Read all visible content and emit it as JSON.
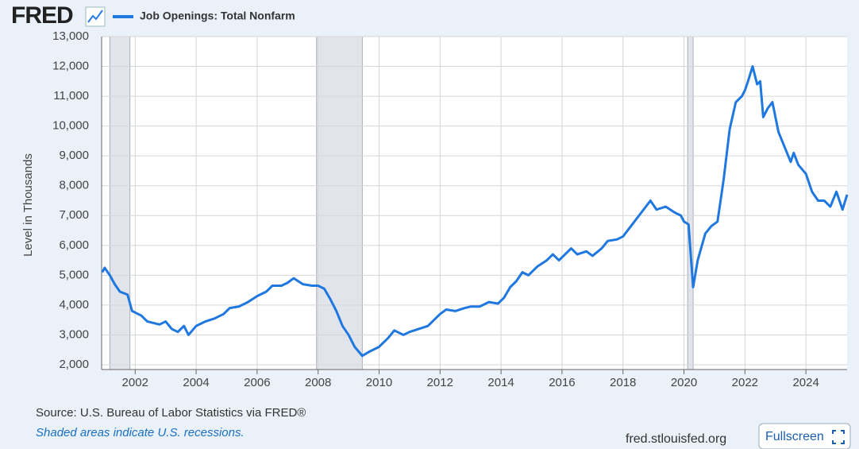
{
  "chart_data": {
    "type": "line",
    "logo": "FRED",
    "ylabel": "Level in Thousands",
    "source": "Source: U.S. Bureau of Labor Statistics via FRED®",
    "note": "Shaded areas indicate U.S. recessions.",
    "site": "fred.stlouisfed.org",
    "button": "Fullscreen",
    "grid": true,
    "xlim": [
      2000.9,
      2025.35
    ],
    "ylim": [
      1840,
      13000
    ],
    "xticks": [
      2002,
      2004,
      2006,
      2008,
      2010,
      2012,
      2014,
      2016,
      2018,
      2020,
      2022,
      2024
    ],
    "yticks": [
      {
        "value": 2000,
        "label": "2,000"
      },
      {
        "value": 3000,
        "label": "3,000"
      },
      {
        "value": 4000,
        "label": "4,000"
      },
      {
        "value": 5000,
        "label": "5,000"
      },
      {
        "value": 6000,
        "label": "6,000"
      },
      {
        "value": 7000,
        "label": "7,000"
      },
      {
        "value": 8000,
        "label": "8,000"
      },
      {
        "value": 9000,
        "label": "9,000"
      },
      {
        "value": 10000,
        "label": "10,000"
      },
      {
        "value": 11000,
        "label": "11,000"
      },
      {
        "value": 12000,
        "label": "12,000"
      },
      {
        "value": 13000,
        "label": "13,000"
      }
    ],
    "recessions": [
      [
        2001.17,
        2001.83
      ],
      [
        2007.95,
        2009.45
      ],
      [
        2020.12,
        2020.3
      ]
    ],
    "x": [
      2000.92,
      2001.0,
      2001.17,
      2001.33,
      2001.5,
      2001.75,
      2001.9,
      2002.0,
      2002.2,
      2002.4,
      2002.6,
      2002.8,
      2003.0,
      2003.2,
      2003.4,
      2003.6,
      2003.75,
      2004.0,
      2004.3,
      2004.6,
      2004.9,
      2005.1,
      2005.4,
      2005.7,
      2006.0,
      2006.3,
      2006.5,
      2006.8,
      2007.0,
      2007.2,
      2007.5,
      2007.8,
      2008.0,
      2008.2,
      2008.4,
      2008.6,
      2008.8,
      2009.0,
      2009.2,
      2009.45,
      2009.7,
      2010.0,
      2010.3,
      2010.5,
      2010.8,
      2011.0,
      2011.3,
      2011.6,
      2011.8,
      2012.0,
      2012.2,
      2012.5,
      2012.8,
      2013.0,
      2013.3,
      2013.6,
      2013.9,
      2014.1,
      2014.3,
      2014.5,
      2014.7,
      2014.9,
      2015.2,
      2015.5,
      2015.7,
      2015.9,
      2016.1,
      2016.3,
      2016.5,
      2016.8,
      2017.0,
      2017.3,
      2017.5,
      2017.8,
      2018.0,
      2018.3,
      2018.6,
      2018.9,
      2019.1,
      2019.4,
      2019.7,
      2019.9,
      2020.0,
      2020.15,
      2020.3,
      2020.45,
      2020.7,
      2020.9,
      2021.1,
      2021.3,
      2021.5,
      2021.7,
      2021.9,
      2022.0,
      2022.1,
      2022.25,
      2022.4,
      2022.5,
      2022.6,
      2022.75,
      2022.9,
      2023.1,
      2023.3,
      2023.5,
      2023.6,
      2023.75,
      2024.0,
      2024.2,
      2024.4,
      2024.6,
      2024.8,
      2025.0,
      2025.2,
      2025.35
    ],
    "series": [
      {
        "name": "Job Openings: Total Nonfarm",
        "color": "#1f77e0",
        "values": [
          5100,
          5250,
          5000,
          4700,
          4450,
          4350,
          3800,
          3750,
          3650,
          3450,
          3400,
          3350,
          3450,
          3200,
          3100,
          3300,
          3000,
          3300,
          3450,
          3550,
          3700,
          3900,
          3950,
          4100,
          4300,
          4450,
          4650,
          4650,
          4750,
          4900,
          4700,
          4650,
          4650,
          4550,
          4200,
          3800,
          3300,
          3000,
          2600,
          2300,
          2450,
          2600,
          2900,
          3150,
          3000,
          3100,
          3200,
          3300,
          3500,
          3700,
          3850,
          3800,
          3900,
          3950,
          3950,
          4100,
          4050,
          4250,
          4600,
          4800,
          5100,
          5000,
          5300,
          5500,
          5700,
          5500,
          5700,
          5900,
          5700,
          5800,
          5650,
          5900,
          6150,
          6200,
          6300,
          6700,
          7100,
          7500,
          7200,
          7300,
          7100,
          7000,
          6800,
          6700,
          4600,
          5500,
          6400,
          6650,
          6800,
          8200,
          9900,
          10800,
          11000,
          11200,
          11500,
          12000,
          11400,
          11500,
          10300,
          10600,
          10800,
          9800,
          9300,
          8800,
          9100,
          8700,
          8400,
          7800,
          7500,
          7500,
          7300,
          7800,
          7200,
          7700
        ]
      }
    ]
  }
}
